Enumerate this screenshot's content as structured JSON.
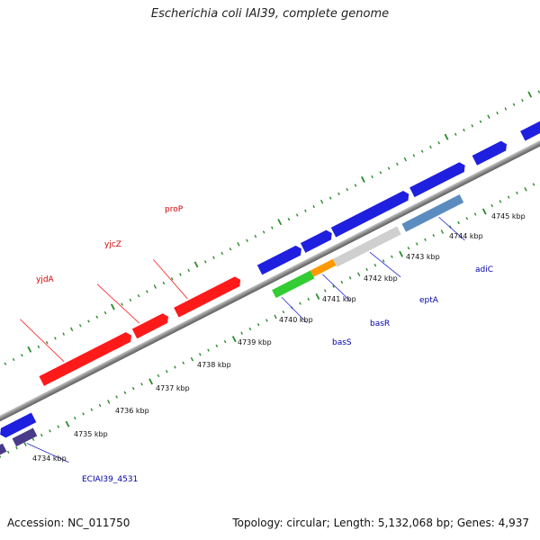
{
  "title": "Escherichia coli IAI39, complete genome",
  "footer": {
    "accession": "Accession: NC_011750",
    "summary": "Topology: circular; Length: 5,132,068 bp; Genes: 4,937"
  },
  "colors": {
    "forward_gene": "#ff1a1a",
    "reverse_gene": "#1f1fe0",
    "backbone": "#8c8c8c",
    "ticks": "#2a8a2a",
    "label_red": "#d40000",
    "label_blue": "#0000aa"
  },
  "scale": {
    "tick_labels": [
      "4734 kbp",
      "4735 kbp",
      "4736 kbp",
      "4737 kbp",
      "4738 kbp",
      "4739 kbp",
      "4740 kbp",
      "4741 kbp",
      "4742 kbp",
      "4743 kbp",
      "4744 kbp",
      "4745 kbp"
    ]
  },
  "gene_labels": {
    "yjdA": "yjdA",
    "yjcZ": "yjcZ",
    "proP": "proP",
    "basS": "basS",
    "basR": "basR",
    "eptA": "eptA",
    "adiC": "adiC",
    "ECIAI39_4531": "ECIAI39_4531"
  }
}
